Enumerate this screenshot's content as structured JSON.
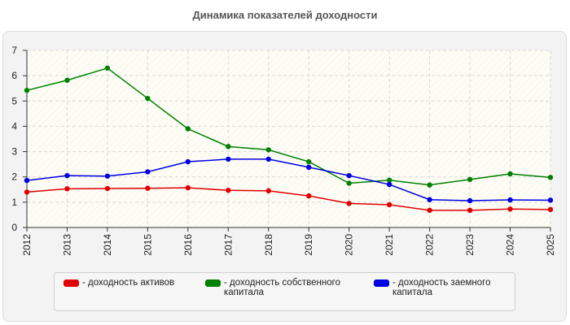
{
  "title": "Динамика показателей доходности",
  "colors": {
    "grid": "#d9d9d9",
    "axis": "#333333",
    "plot_bg": "#fdfdf6"
  },
  "chart_data": {
    "type": "line",
    "title": "Динамика показателей доходности",
    "xlabel": "",
    "ylabel": "",
    "x": [
      "2012",
      "2013",
      "2014",
      "2015",
      "2016",
      "2017",
      "2018",
      "2019",
      "2020",
      "2021",
      "2022",
      "2023",
      "2024",
      "2025"
    ],
    "ylim": [
      0,
      7
    ],
    "yticks": [
      0,
      1,
      2,
      3,
      4,
      5,
      6,
      7
    ],
    "grid": true,
    "legend_position": "bottom",
    "series": [
      {
        "name": "- доходность активов",
        "color": "#e00000",
        "values": [
          1.4,
          1.53,
          1.54,
          1.55,
          1.57,
          1.47,
          1.45,
          1.25,
          0.95,
          0.9,
          0.68,
          0.68,
          0.73,
          0.71
        ]
      },
      {
        "name": "- доходность собственного\nкапитала",
        "color": "#008000",
        "values": [
          5.42,
          5.82,
          6.3,
          5.1,
          3.9,
          3.2,
          3.07,
          2.6,
          1.75,
          1.87,
          1.68,
          1.9,
          2.12,
          1.98
        ]
      },
      {
        "name": "- доходность заемного\nкапитала",
        "color": "#0000e0",
        "values": [
          1.86,
          2.05,
          2.03,
          2.2,
          2.6,
          2.7,
          2.7,
          2.38,
          2.05,
          1.7,
          1.1,
          1.06,
          1.09,
          1.08
        ]
      }
    ]
  }
}
